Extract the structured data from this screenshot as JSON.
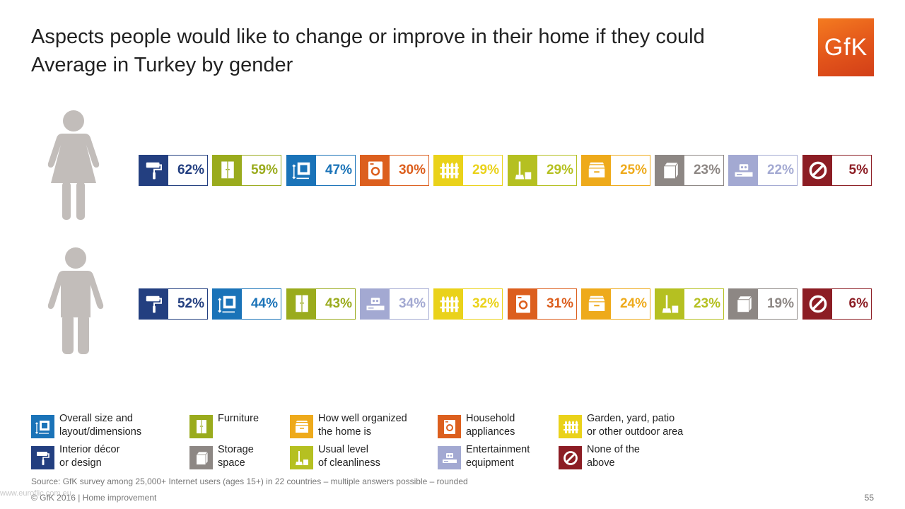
{
  "title": {
    "line1": "Aspects people would like to change or improve in their home if they could",
    "line2": "Average in Turkey by gender"
  },
  "logo": {
    "text": "GfK",
    "color": "#e8601c"
  },
  "categories": {
    "interior": {
      "label": "Interior décor\nor design",
      "color": "#233f80",
      "icon": "paint-roller-icon"
    },
    "furniture": {
      "label": "Furniture",
      "color": "#9aab1d",
      "icon": "wardrobe-icon"
    },
    "size": {
      "label": "Overall size and\nlayout/dimensions",
      "color": "#1a73b8",
      "icon": "floorplan-icon"
    },
    "appliances": {
      "label": "Household\nappliances",
      "color": "#dc5f1e",
      "icon": "washing-machine-icon"
    },
    "garden": {
      "label": "Garden, yard, patio\nor other outdoor area",
      "color": "#ead21a",
      "icon": "fence-icon"
    },
    "cleanliness": {
      "label": "Usual level\nof cleanliness",
      "color": "#b5c021",
      "icon": "broom-icon"
    },
    "organized": {
      "label": "How well organized\nthe home is",
      "color": "#eeaa1b",
      "icon": "drawer-icon"
    },
    "storage": {
      "label": "Storage\nspace",
      "color": "#8d8784",
      "icon": "box-icon"
    },
    "entertainment": {
      "label": "Entertainment\nequipment",
      "color": "#a3a9d2",
      "icon": "tv-console-icon"
    },
    "none": {
      "label": "None of the\nabove",
      "color": "#8c1d24",
      "icon": "forbidden-icon"
    }
  },
  "chart_data": {
    "type": "bar",
    "unit": "%",
    "series": [
      {
        "name": "female",
        "icon": "female-figure-icon",
        "order": [
          "interior",
          "furniture",
          "size",
          "appliances",
          "garden",
          "cleanliness",
          "organized",
          "storage",
          "entertainment",
          "none"
        ],
        "values": [
          62,
          59,
          47,
          30,
          29,
          29,
          25,
          23,
          22,
          5
        ],
        "labels": [
          "62%",
          "59%",
          "47%",
          "30%",
          "29%",
          "29%",
          "25%",
          "23%",
          "22%",
          "5%"
        ]
      },
      {
        "name": "male",
        "icon": "male-figure-icon",
        "order": [
          "interior",
          "size",
          "furniture",
          "entertainment",
          "garden",
          "appliances",
          "organized",
          "cleanliness",
          "storage",
          "none"
        ],
        "values": [
          52,
          44,
          43,
          34,
          32,
          31,
          24,
          23,
          19,
          6
        ],
        "labels": [
          "52%",
          "44%",
          "43%",
          "34%",
          "32%",
          "31%",
          "24%",
          "23%",
          "19%",
          "6%"
        ]
      }
    ]
  },
  "legend": {
    "order": [
      "size",
      "interior",
      "furniture",
      "storage",
      "organized",
      "cleanliness",
      "appliances",
      "entertainment",
      "garden",
      "none"
    ]
  },
  "source": "Source: GfK survey among 25,000+ Internet users (ages 15+) in 22 countries – multiple answers possible – rounded",
  "footer": "© GfK 2016 | Home improvement",
  "page_number": "55",
  "watermark": "www.euroflic.com.eu"
}
